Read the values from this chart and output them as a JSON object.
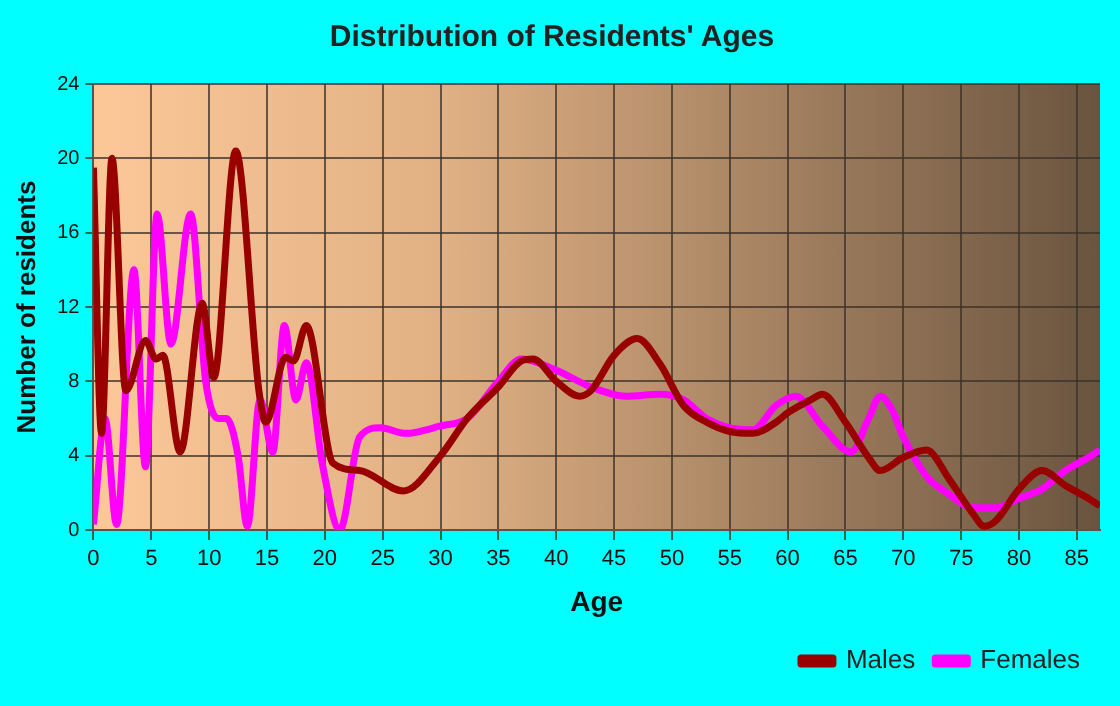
{
  "chart_data": {
    "type": "line",
    "title": "Distribution of Residents' Ages",
    "xlabel": "Age",
    "ylabel": "Number of residents",
    "xlim": [
      0,
      87
    ],
    "xticks": [
      0,
      5,
      10,
      15,
      20,
      25,
      30,
      35,
      40,
      45,
      50,
      55,
      60,
      65,
      70,
      75,
      80,
      85
    ],
    "ylim": [
      0,
      24
    ],
    "yticks": [
      0,
      4,
      8,
      12,
      16,
      20,
      24
    ],
    "grid": true,
    "legend": "bottom right",
    "marker": "none",
    "line_style": "solid",
    "series": [
      {
        "name": "Males",
        "color": "#990000",
        "x": [
          0,
          0.7,
          1.6,
          2.8,
          4.5,
          5.4,
          6,
          7.5,
          9.4,
          10.4,
          12.3,
          14.3,
          14.9,
          16.6,
          17.3,
          18.4,
          20.7,
          23,
          26.8,
          30,
          32.3,
          35,
          37,
          38,
          40,
          42,
          43,
          45,
          47,
          49,
          51,
          53,
          55,
          57,
          59,
          60,
          62,
          63,
          65,
          67,
          68,
          70,
          72,
          74,
          76,
          77,
          78,
          80,
          82,
          84,
          86,
          87
        ],
        "values": [
          19.5,
          5.2,
          20,
          7.5,
          10.2,
          9.2,
          9.4,
          4.2,
          12.2,
          8.2,
          20.4,
          7.5,
          5.8,
          9.3,
          9.1,
          11,
          3.6,
          3.2,
          2.1,
          4,
          6,
          7.7,
          9.1,
          9.2,
          8,
          7.2,
          7.5,
          9.4,
          10.3,
          8.9,
          6.7,
          5.8,
          5.3,
          5.2,
          5.8,
          6.3,
          7,
          7.3,
          5.8,
          3.9,
          3.2,
          3.9,
          4.3,
          2.7,
          0.9,
          0.2,
          0.5,
          2.2,
          3.2,
          2.4,
          1.7,
          1.3
        ]
      },
      {
        "name": "Females",
        "color": "#ff00ff",
        "x": [
          0,
          1,
          2,
          3.5,
          4.5,
          5.5,
          6.7,
          8.4,
          9.7,
          10.8,
          11.5,
          12.5,
          13.3,
          14.4,
          15.5,
          16.5,
          17.5,
          18.4,
          19.8,
          21.3,
          23,
          24.8,
          27,
          30,
          32.3,
          35,
          37,
          40,
          43,
          46,
          49,
          51,
          53,
          55,
          57,
          59,
          60.7,
          63,
          65.5,
          67,
          68,
          69,
          70,
          72,
          74,
          76,
          78,
          80,
          82,
          84,
          86,
          87
        ],
        "values": [
          0.3,
          6,
          0.3,
          14,
          3.4,
          17,
          10,
          17,
          8,
          6,
          6,
          4,
          0.2,
          7,
          4.2,
          11,
          7,
          9,
          3.5,
          0,
          5,
          5.5,
          5.2,
          5.6,
          6,
          8,
          9.2,
          8.6,
          7.7,
          7.2,
          7.3,
          7,
          6,
          5.5,
          5.4,
          6.7,
          7.2,
          5.6,
          4.2,
          6,
          7.2,
          6.5,
          5,
          2.9,
          1.9,
          1.2,
          1.2,
          1.7,
          2.2,
          3.2,
          3.9,
          4.3
        ]
      }
    ]
  }
}
